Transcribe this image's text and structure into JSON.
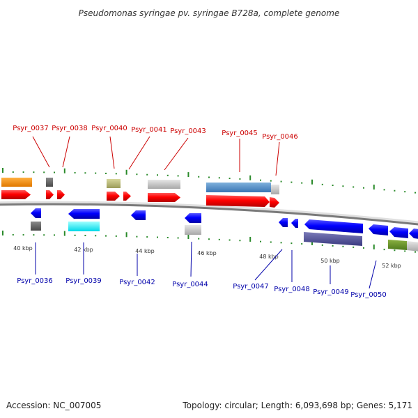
{
  "title": "Pseudomonas syringae pv. syringae B728a, complete genome",
  "footer": {
    "accession": "Accession: NC_007005",
    "topology": "Topology: circular; Length: 6,093,698 bp; Genes: 5,171"
  },
  "colors": {
    "forward_label": "#cc0000",
    "reverse_label": "#0000aa",
    "forward_gene": "#ff0000",
    "reverse_gene": "#0000ff",
    "tick": "#2a8a2a",
    "backbone": "#888888"
  },
  "scale_labels": [
    "40 kbp",
    "42 kbp",
    "44 kbp",
    "46 kbp",
    "48 kbp",
    "50 kbp",
    "52 kbp"
  ],
  "forward_genes": [
    "Psyr_0037",
    "Psyr_0038",
    "Psyr_0040",
    "Psyr_0041",
    "Psyr_0043",
    "Psyr_0045",
    "Psyr_0046"
  ],
  "reverse_genes": [
    "Psyr_0036",
    "Psyr_0039",
    "Psyr_0042",
    "Psyr_0044",
    "Psyr_0047",
    "Psyr_0048",
    "Psyr_0049",
    "Psyr_0050"
  ]
}
